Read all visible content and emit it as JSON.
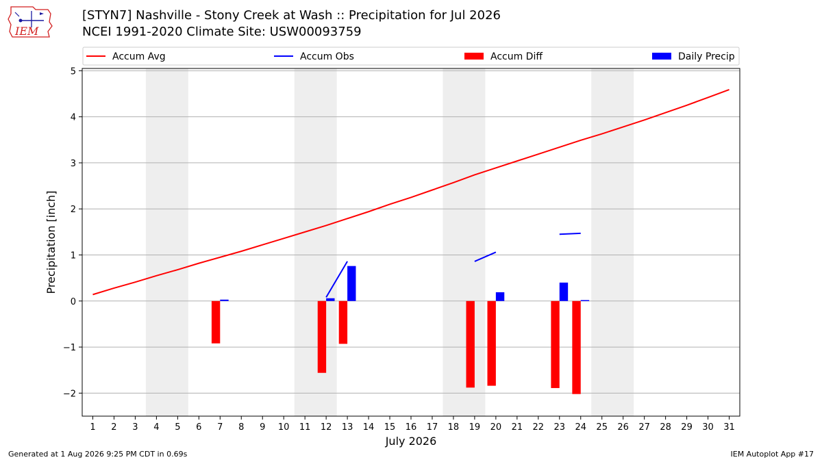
{
  "header": {
    "title_line1": "[STYN7] Nashville - Stony Creek at Wash :: Precipitation for Jul 2026",
    "title_line2": "NCEI 1991-2020 Climate Site: USW00093759"
  },
  "logo": {
    "text": "IEM",
    "color": "#d21f1f"
  },
  "footer": {
    "left": "Generated at 1 Aug 2026 9:25 PM CDT in 0.69s",
    "right": "IEM Autoplot App #17"
  },
  "colors": {
    "accum_avg": "#ff0000",
    "accum_obs": "#0000ff",
    "accum_diff": "#ff0000",
    "daily_precip": "#0000ff",
    "weekend_shade": "#eeeeee",
    "grid": "#b0b0b0"
  },
  "chart_data": {
    "type": "bar",
    "xlabel": "July 2026",
    "ylabel": "Precipitation [inch]",
    "xlim": [
      0.5,
      31.5
    ],
    "ylim": [
      -2.5,
      5.05
    ],
    "yticks": [
      -2,
      -1,
      0,
      1,
      2,
      3,
      4,
      5
    ],
    "ytick_labels": [
      "−2",
      "−1",
      "0",
      "1",
      "2",
      "3",
      "4",
      "5"
    ],
    "days": [
      1,
      2,
      3,
      4,
      5,
      6,
      7,
      8,
      9,
      10,
      11,
      12,
      13,
      14,
      15,
      16,
      17,
      18,
      19,
      20,
      21,
      22,
      23,
      24,
      25,
      26,
      27,
      28,
      29,
      30,
      31
    ],
    "grid": "horizontal",
    "legend_position": "top",
    "legend": [
      "Accum Avg",
      "Accum Obs",
      "Accum Diff",
      "Daily Precip"
    ],
    "weekend_spans": [
      [
        3.5,
        5.5
      ],
      [
        10.5,
        12.5
      ],
      [
        17.5,
        19.5
      ],
      [
        24.5,
        26.5
      ]
    ],
    "accum_avg": {
      "name": "Accum Avg",
      "days": [
        1,
        2,
        3,
        4,
        5,
        6,
        7,
        8,
        9,
        10,
        11,
        12,
        13,
        14,
        15,
        16,
        17,
        18,
        19,
        20,
        21,
        22,
        23,
        24,
        25,
        26,
        27,
        28,
        29,
        30,
        31
      ],
      "values": [
        0.14,
        0.28,
        0.41,
        0.55,
        0.68,
        0.82,
        0.95,
        1.08,
        1.22,
        1.36,
        1.5,
        1.64,
        1.79,
        1.94,
        2.1,
        2.25,
        2.41,
        2.57,
        2.74,
        2.89,
        3.04,
        3.19,
        3.34,
        3.49,
        3.63,
        3.78,
        3.93,
        4.09,
        4.25,
        4.42,
        4.59
      ]
    },
    "accum_obs": {
      "name": "Accum Obs",
      "segments": [
        {
          "days": [
            12,
            13
          ],
          "values": [
            0.08,
            0.86
          ]
        },
        {
          "days": [
            19,
            20
          ],
          "values": [
            0.86,
            1.06
          ]
        },
        {
          "days": [
            23,
            24
          ],
          "values": [
            1.45,
            1.47
          ]
        }
      ]
    },
    "accum_diff": {
      "name": "Accum Diff",
      "days": [
        7,
        12,
        13,
        19,
        20,
        23,
        24
      ],
      "values": [
        -0.92,
        -1.56,
        -0.93,
        -1.88,
        -1.84,
        -1.89,
        -2.02
      ]
    },
    "daily_precip": {
      "name": "Daily Precip",
      "days": [
        7,
        12,
        13,
        20,
        23,
        24
      ],
      "values": [
        0.03,
        0.06,
        0.76,
        0.19,
        0.4,
        0.02
      ]
    }
  }
}
